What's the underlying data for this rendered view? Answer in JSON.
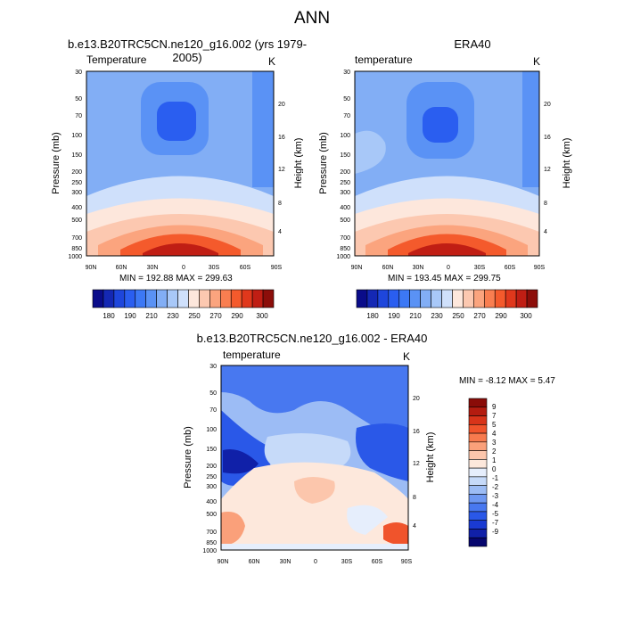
{
  "title": "ANN",
  "colors": {
    "ramp": [
      "#0a0c8a",
      "#1428b4",
      "#1e46dc",
      "#2a5ef0",
      "#3c78f5",
      "#5a92f5",
      "#82aef5",
      "#a8c8f8",
      "#cfe0fb",
      "#fde7dc",
      "#fcc8b0",
      "#fba47e",
      "#f97e50",
      "#f45a2c",
      "#e0381c",
      "#c01e14",
      "#8c0e0a"
    ],
    "diff_ramp": [
      "#06066e",
      "#1020a8",
      "#1a3ad2",
      "#2a58e8",
      "#4878f0",
      "#6e98f2",
      "#9cbcf5",
      "#c6daf9",
      "#e6eefc",
      "#fde8dc",
      "#fcc6ac",
      "#faa07a",
      "#f77a4e",
      "#f0542c",
      "#d8341a",
      "#b41c10",
      "#8a0c08"
    ]
  },
  "chart_data": [
    {
      "type": "heatmap",
      "title": "b.e13.B20TRC5CN.ne120_g16.002 (yrs 1979-2005)",
      "left_label": "Temperature",
      "right_label": "K",
      "ylabel": "Pressure (mb)",
      "y2label": "Height (km)",
      "x_ticks": [
        "90N",
        "60N",
        "30N",
        "0",
        "30S",
        "60S",
        "90S"
      ],
      "y_ticks": [
        "30",
        "50",
        "70",
        "100",
        "150",
        "200",
        "250",
        "300",
        "400",
        "500",
        "700",
        "850",
        "1000"
      ],
      "y2_ticks": [
        "20",
        "16",
        "12",
        "8",
        "4"
      ],
      "min": "192.88",
      "max": "299.63",
      "minmax_text": "MIN = 192.88   MAX = 299.63",
      "colorbar_labels": [
        "180",
        "190",
        "210",
        "230",
        "250",
        "270",
        "290",
        "300"
      ]
    },
    {
      "type": "heatmap",
      "title": "ERA40",
      "left_label": "temperature",
      "right_label": "K",
      "ylabel": "Pressure (mb)",
      "y2label": "Height (km)",
      "x_ticks": [
        "90N",
        "60N",
        "30N",
        "0",
        "30S",
        "60S",
        "90S"
      ],
      "y_ticks": [
        "30",
        "50",
        "70",
        "100",
        "150",
        "200",
        "250",
        "300",
        "400",
        "500",
        "700",
        "850",
        "1000"
      ],
      "y2_ticks": [
        "20",
        "16",
        "12",
        "8",
        "4"
      ],
      "min": "193.45",
      "max": "299.75",
      "minmax_text": "MIN = 193.45   MAX = 299.75",
      "colorbar_labels": [
        "180",
        "190",
        "210",
        "230",
        "250",
        "270",
        "290",
        "300"
      ]
    },
    {
      "type": "heatmap",
      "title": "b.e13.B20TRC5CN.ne120_g16.002 - ERA40",
      "left_label": "temperature",
      "right_label": "K",
      "ylabel": "Pressure (mb)",
      "y2label": "Height (km)",
      "x_ticks": [
        "90N",
        "60N",
        "30N",
        "0",
        "30S",
        "60S",
        "90S"
      ],
      "y_ticks": [
        "30",
        "50",
        "70",
        "100",
        "150",
        "200",
        "250",
        "300",
        "400",
        "500",
        "700",
        "850",
        "1000"
      ],
      "y2_ticks": [
        "20",
        "16",
        "12",
        "8",
        "4"
      ],
      "min": "-8.12",
      "max": "5.47",
      "minmax_text": "MIN =  -8.12   MAX =   5.47",
      "colorbar_labels": [
        "9",
        "7",
        "5",
        "4",
        "3",
        "2",
        "1",
        "0",
        "-1",
        "-2",
        "-3",
        "-4",
        "-5",
        "-7",
        "-9"
      ]
    }
  ]
}
